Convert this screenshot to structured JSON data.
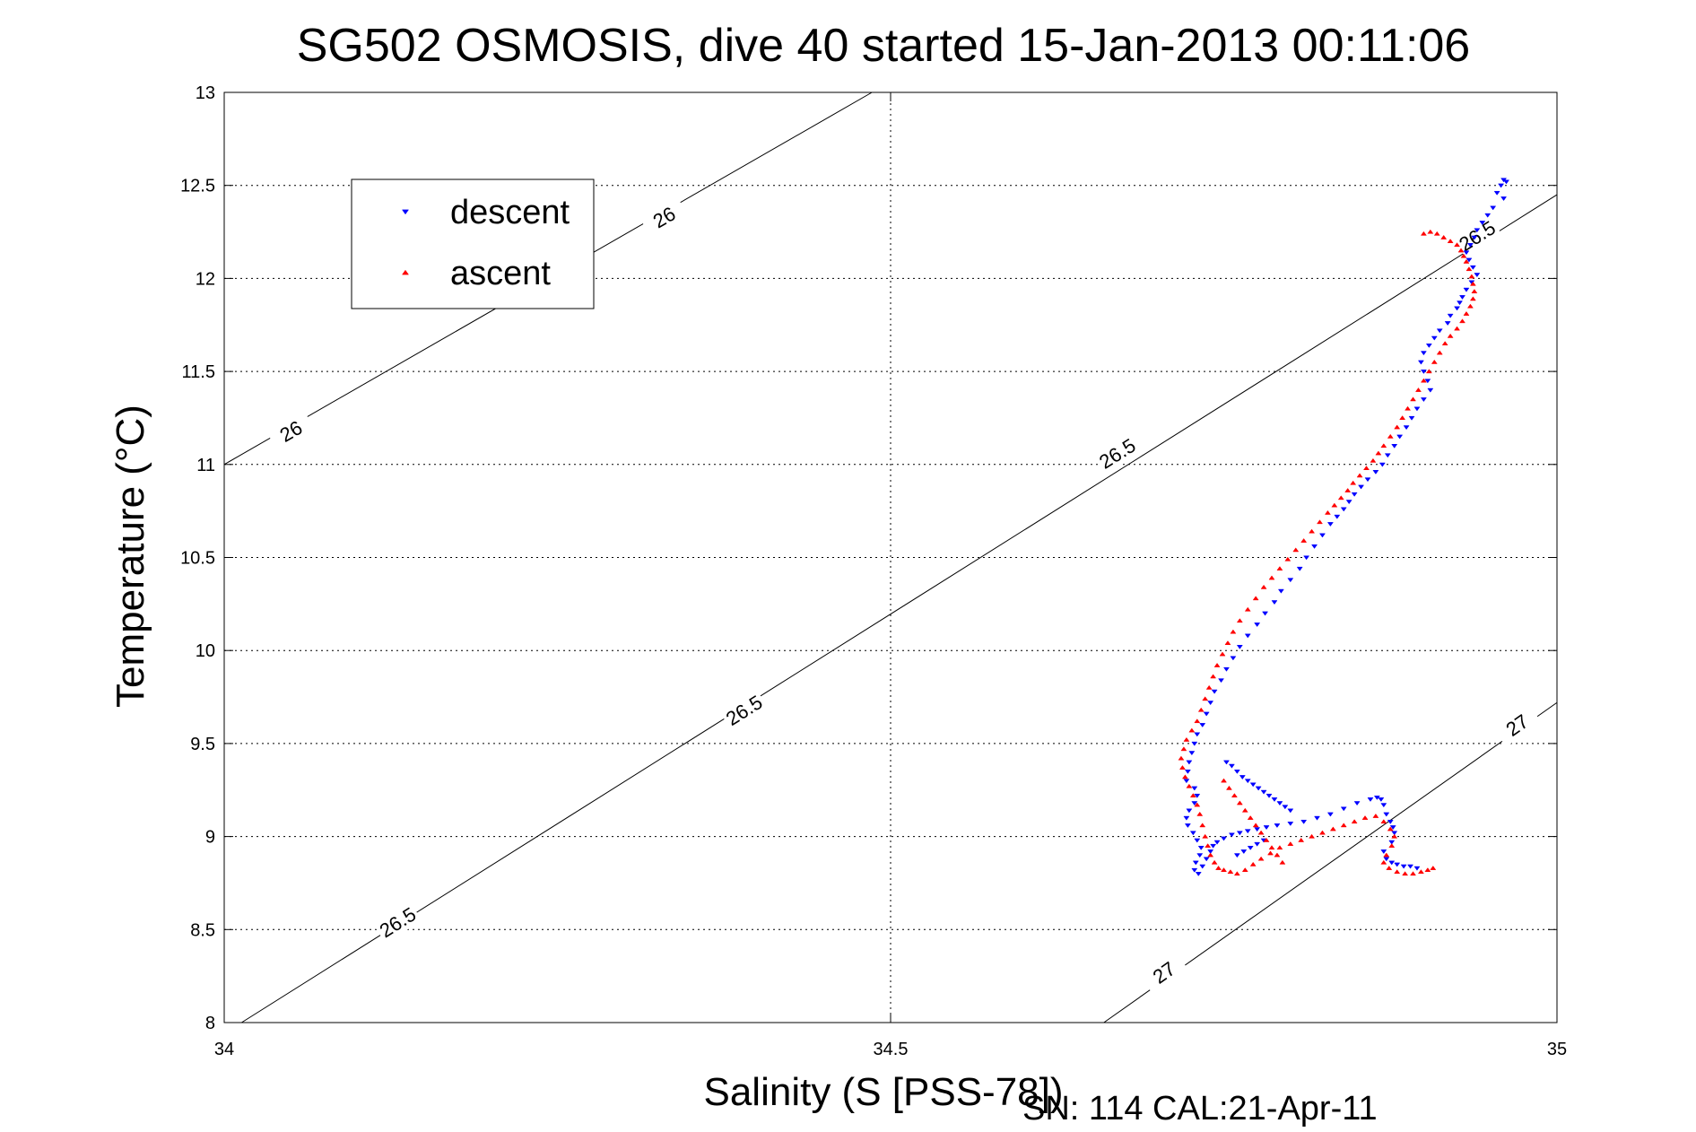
{
  "chart_data": {
    "type": "scatter",
    "title": "SG502 OSMOSIS, dive 40 started 15-Jan-2013 00:11:06",
    "xlabel": "Salinity (S [PSS-78])",
    "ylabel": "Temperature (°C)",
    "xlim": [
      34,
      35
    ],
    "ylim": [
      8,
      13
    ],
    "xticks": [
      34,
      34.5,
      35
    ],
    "xtick_labels": [
      "34",
      "34.5",
      "35"
    ],
    "yticks": [
      8,
      8.5,
      9,
      9.5,
      10,
      10.5,
      11,
      11.5,
      12,
      12.5,
      13
    ],
    "ytick_labels": [
      "8",
      "8.5",
      "9",
      "9.5",
      "10",
      "10.5",
      "11",
      "11.5",
      "12",
      "12.5",
      "13"
    ],
    "grid": true,
    "legend_position": "upper-left",
    "footer": "SN: 114  CAL:21-Apr-11",
    "contours": [
      {
        "level_label": "26",
        "x": [
          34.0,
          34.486
        ],
        "y": [
          11.0,
          13.0
        ],
        "labels": [
          {
            "text": "26",
            "x": 34.05,
            "y": 11.18
          },
          {
            "text": "26",
            "x": 34.33,
            "y": 12.33
          }
        ]
      },
      {
        "level_label": "26.5",
        "x": [
          34.013,
          35.0
        ],
        "y": [
          8.0,
          12.45
        ],
        "labels": [
          {
            "text": "26.5",
            "x": 34.13,
            "y": 8.54
          },
          {
            "text": "26.5",
            "x": 34.39,
            "y": 9.68
          },
          {
            "text": "26.5",
            "x": 34.67,
            "y": 11.06
          },
          {
            "text": "26.5",
            "x": 34.94,
            "y": 12.23
          }
        ]
      },
      {
        "level_label": "27",
        "x": [
          34.66,
          35.0
        ],
        "y": [
          8.0,
          9.72
        ],
        "labels": [
          {
            "text": "27",
            "x": 34.705,
            "y": 8.27
          },
          {
            "text": "27",
            "x": 34.97,
            "y": 9.6
          }
        ]
      }
    ],
    "series": [
      {
        "name": "descent",
        "color": "#0000ff",
        "marker": "triangle-down",
        "x": [
          34.96,
          34.962,
          34.958,
          34.955,
          34.96,
          34.952,
          34.948,
          34.944,
          34.94,
          34.938,
          34.935,
          34.932,
          34.934,
          34.937,
          34.94,
          34.936,
          34.932,
          34.929,
          34.927,
          34.925,
          34.92,
          34.918,
          34.912,
          34.908,
          34.904,
          34.9,
          34.898,
          34.9,
          34.903,
          34.905,
          34.9,
          34.895,
          34.891,
          34.887,
          34.882,
          34.878,
          34.873,
          34.869,
          34.864,
          34.858,
          34.853,
          34.848,
          34.844,
          34.84,
          34.835,
          34.83,
          34.824,
          34.818,
          34.812,
          34.807,
          34.8,
          34.793,
          34.788,
          34.781,
          34.775,
          34.768,
          34.762,
          34.757,
          34.752,
          34.748,
          34.743,
          34.74,
          34.737,
          34.734,
          34.73,
          34.728,
          34.726,
          34.724,
          34.723,
          34.722,
          34.728,
          34.73,
          34.728,
          34.724,
          34.722,
          34.723,
          34.727,
          34.73,
          34.733,
          34.732,
          34.729,
          34.728,
          34.731,
          34.734,
          34.737,
          34.74,
          34.742,
          34.745,
          34.75,
          34.756,
          34.762,
          34.768,
          34.775,
          34.782,
          34.79,
          34.8,
          34.81,
          34.82,
          34.83,
          34.84,
          34.85,
          34.86,
          34.865,
          34.868,
          34.87,
          34.872,
          34.875,
          34.877,
          34.878,
          34.876,
          34.87,
          34.872,
          34.876,
          34.88,
          34.885,
          34.89,
          34.895,
          34.752,
          34.756,
          34.76,
          34.764,
          34.768,
          34.772,
          34.776,
          34.78,
          34.784,
          34.788,
          34.792,
          34.796,
          34.8,
          34.76,
          34.765,
          34.77,
          34.775,
          34.78
        ],
        "y": [
          12.53,
          12.52,
          12.5,
          12.46,
          12.43,
          12.38,
          12.34,
          12.3,
          12.26,
          12.22,
          12.18,
          12.14,
          12.1,
          12.06,
          12.02,
          11.98,
          11.94,
          11.9,
          11.87,
          11.84,
          11.8,
          11.76,
          11.72,
          11.68,
          11.64,
          11.6,
          11.55,
          11.5,
          11.45,
          11.4,
          11.35,
          11.3,
          11.25,
          11.2,
          11.15,
          11.1,
          11.05,
          11.0,
          10.96,
          10.92,
          10.88,
          10.84,
          10.8,
          10.76,
          10.72,
          10.68,
          10.62,
          10.56,
          10.5,
          10.44,
          10.38,
          10.32,
          10.26,
          10.2,
          10.14,
          10.08,
          10.02,
          9.96,
          9.9,
          9.84,
          9.78,
          9.72,
          9.66,
          9.6,
          9.55,
          9.5,
          9.45,
          9.4,
          9.35,
          9.3,
          9.26,
          9.22,
          9.18,
          9.14,
          9.1,
          9.06,
          9.02,
          8.98,
          8.94,
          8.9,
          8.86,
          8.82,
          8.8,
          8.84,
          8.88,
          8.92,
          8.95,
          8.97,
          8.99,
          9.01,
          9.02,
          9.03,
          9.04,
          9.05,
          9.06,
          9.07,
          9.08,
          9.1,
          9.12,
          9.15,
          9.18,
          9.2,
          9.21,
          9.2,
          9.17,
          9.12,
          9.08,
          9.05,
          9.02,
          8.97,
          8.92,
          8.88,
          8.86,
          8.85,
          8.84,
          8.84,
          8.83,
          9.4,
          9.38,
          9.35,
          9.32,
          9.3,
          9.28,
          9.26,
          9.24,
          9.22,
          9.2,
          9.18,
          9.16,
          9.14,
          8.9,
          8.92,
          8.94,
          8.96,
          8.98
        ]
      },
      {
        "name": "ascent",
        "color": "#ff0000",
        "marker": "triangle-up",
        "x": [
          34.9,
          34.905,
          34.91,
          34.915,
          34.92,
          34.925,
          34.928,
          34.93,
          34.932,
          34.934,
          34.936,
          34.937,
          34.938,
          34.937,
          34.935,
          34.932,
          34.929,
          34.925,
          34.92,
          34.916,
          34.912,
          34.908,
          34.904,
          34.9,
          34.896,
          34.892,
          34.888,
          34.884,
          34.88,
          34.875,
          34.87,
          34.866,
          34.862,
          34.857,
          34.852,
          34.847,
          34.843,
          34.838,
          34.833,
          34.828,
          34.822,
          34.816,
          34.81,
          34.804,
          34.798,
          34.792,
          34.786,
          34.78,
          34.774,
          34.768,
          34.762,
          34.757,
          34.753,
          34.749,
          34.745,
          34.742,
          34.739,
          34.736,
          34.733,
          34.73,
          34.726,
          34.722,
          34.72,
          34.718,
          34.719,
          34.721,
          34.724,
          34.727,
          34.73,
          34.732,
          34.734,
          34.736,
          34.738,
          34.74,
          34.743,
          34.746,
          34.75,
          34.755,
          34.76,
          34.766,
          34.772,
          34.778,
          34.785,
          34.792,
          34.8,
          34.808,
          34.816,
          34.824,
          34.832,
          34.84,
          34.848,
          34.856,
          34.864,
          34.87,
          34.875,
          34.878,
          34.876,
          34.872,
          34.87,
          34.874,
          34.88,
          34.886,
          34.892,
          34.898,
          34.903,
          34.907,
          34.75,
          34.754,
          34.758,
          34.762,
          34.766,
          34.77,
          34.774,
          34.778,
          34.782,
          34.786,
          34.79,
          34.794
        ],
        "y": [
          12.24,
          12.25,
          12.24,
          12.22,
          12.2,
          12.18,
          12.15,
          12.12,
          12.09,
          12.05,
          12.01,
          11.97,
          11.93,
          11.89,
          11.85,
          11.81,
          11.77,
          11.73,
          11.69,
          11.65,
          11.6,
          11.55,
          11.5,
          11.45,
          11.4,
          11.35,
          11.3,
          11.25,
          11.2,
          11.15,
          11.1,
          11.06,
          11.02,
          10.98,
          10.94,
          10.9,
          10.86,
          10.82,
          10.78,
          10.74,
          10.69,
          10.64,
          10.59,
          10.54,
          10.49,
          10.44,
          10.39,
          10.34,
          10.28,
          10.22,
          10.16,
          10.1,
          10.04,
          9.98,
          9.92,
          9.86,
          9.8,
          9.74,
          9.68,
          9.62,
          9.57,
          9.52,
          9.47,
          9.42,
          9.37,
          9.32,
          9.27,
          9.22,
          9.17,
          9.12,
          9.06,
          9.0,
          8.95,
          8.9,
          8.86,
          8.83,
          8.82,
          8.81,
          8.8,
          8.82,
          8.85,
          8.88,
          8.91,
          8.94,
          8.96,
          8.98,
          9.0,
          9.02,
          9.04,
          9.06,
          9.08,
          9.1,
          9.11,
          9.08,
          9.04,
          9.0,
          8.95,
          8.9,
          8.86,
          8.83,
          8.81,
          8.8,
          8.8,
          8.81,
          8.82,
          8.83,
          9.3,
          9.26,
          9.22,
          9.18,
          9.14,
          9.1,
          9.06,
          9.02,
          8.98,
          8.94,
          8.9,
          8.86
        ]
      }
    ]
  }
}
